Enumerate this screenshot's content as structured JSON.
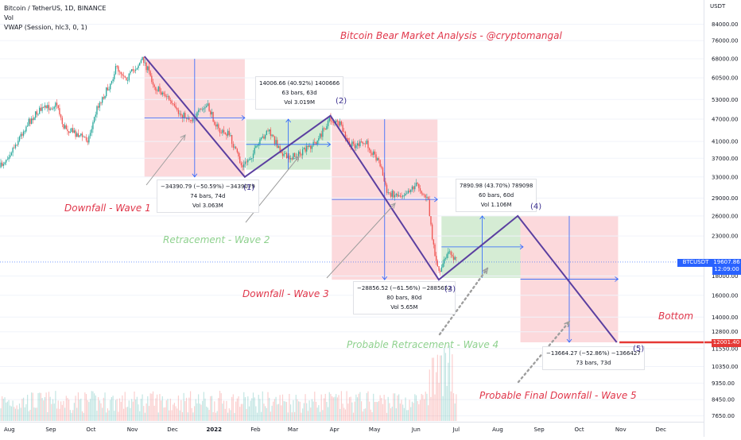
{
  "header": {
    "symbol": "Bitcoin / TetherUS, 1D, BINANCE",
    "vol": "Vol",
    "vwap": "VWAP (Session, hlc3, 0, 1)"
  },
  "title": "Bitcoin Bear Market Analysis   - @cryptomangal",
  "colors": {
    "up": "#26a69a",
    "down": "#ef5350",
    "wave_line": "#5b3fa0",
    "blue": "#2962ff",
    "red_zone": "#fcd9dc",
    "green_zone": "#d5ecd4",
    "bottom_line": "#e53935"
  },
  "chart_data": {
    "type": "candlestick",
    "price_axis": {
      "unit": "USDT",
      "scale": "log",
      "ticks": [
        84000,
        76000,
        68000,
        60500,
        53000,
        47000,
        41000,
        37000,
        33000,
        29000,
        26000,
        23000,
        18000,
        16000,
        14000,
        12800,
        11550,
        10350,
        9350,
        8450,
        7650
      ]
    },
    "time_axis": {
      "ticks": [
        "Aug",
        "Sep",
        "Oct",
        "Nov",
        "Dec",
        "2022",
        "Feb",
        "Mar",
        "Apr",
        "May",
        "Jun",
        "Jul",
        "Aug",
        "Sep",
        "Oct",
        "Nov",
        "Dec"
      ]
    },
    "close_path": [
      {
        "date": "2021-07-25",
        "price": 35000
      },
      {
        "date": "2021-08-05",
        "price": 40000
      },
      {
        "date": "2021-08-15",
        "price": 46000
      },
      {
        "date": "2021-08-23",
        "price": 49500
      },
      {
        "date": "2021-09-06",
        "price": 51500
      },
      {
        "date": "2021-09-10",
        "price": 45000
      },
      {
        "date": "2021-09-20",
        "price": 43000
      },
      {
        "date": "2021-09-29",
        "price": 41500
      },
      {
        "date": "2021-10-06",
        "price": 51000
      },
      {
        "date": "2021-10-14",
        "price": 57000
      },
      {
        "date": "2021-10-20",
        "price": 64500
      },
      {
        "date": "2021-10-28",
        "price": 60500
      },
      {
        "date": "2021-11-09",
        "price": 68000
      },
      {
        "date": "2021-11-18",
        "price": 57000
      },
      {
        "date": "2021-11-27",
        "price": 54000
      },
      {
        "date": "2021-12-04",
        "price": 49000
      },
      {
        "date": "2021-12-15",
        "price": 47000
      },
      {
        "date": "2021-12-27",
        "price": 51000
      },
      {
        "date": "2022-01-05",
        "price": 43500
      },
      {
        "date": "2022-01-12",
        "price": 43000
      },
      {
        "date": "2022-01-22",
        "price": 35000
      },
      {
        "date": "2022-01-30",
        "price": 38000
      },
      {
        "date": "2022-02-10",
        "price": 44000
      },
      {
        "date": "2022-02-24",
        "price": 37000
      },
      {
        "date": "2022-03-07",
        "price": 38000
      },
      {
        "date": "2022-03-20",
        "price": 41500
      },
      {
        "date": "2022-03-28",
        "price": 47000
      },
      {
        "date": "2022-04-05",
        "price": 45500
      },
      {
        "date": "2022-04-12",
        "price": 40000
      },
      {
        "date": "2022-04-25",
        "price": 40500
      },
      {
        "date": "2022-05-05",
        "price": 36000
      },
      {
        "date": "2022-05-10",
        "price": 30000
      },
      {
        "date": "2022-05-20",
        "price": 29500
      },
      {
        "date": "2022-06-02",
        "price": 31500
      },
      {
        "date": "2022-06-10",
        "price": 28500
      },
      {
        "date": "2022-06-13",
        "price": 22500
      },
      {
        "date": "2022-06-18",
        "price": 18500
      },
      {
        "date": "2022-06-26",
        "price": 21000
      },
      {
        "date": "2022-07-02",
        "price": 19600
      }
    ],
    "current_price": {
      "label": "BTCUSDT",
      "value": "19607.86",
      "countdown": "12:09:00"
    },
    "bottom_level": {
      "value": "12001.40"
    },
    "wave_path": [
      {
        "label": "",
        "date": "2021-11-10",
        "price": 69000
      },
      {
        "label": "(1)",
        "date": "2022-01-24",
        "price": 33000
      },
      {
        "label": "(2)",
        "date": "2022-03-29",
        "price": 48000
      },
      {
        "label": "(3)",
        "date": "2022-06-18",
        "price": 17600
      },
      {
        "label": "(4)",
        "date": "2022-08-16",
        "price": 26000
      },
      {
        "label": "(5)",
        "date": "2022-10-29",
        "price": 12000
      }
    ],
    "measurements": [
      {
        "lines": [
          "−34390.79 (−50.59%) −3439079",
          "74 bars, 74d",
          "Vol 3.063M"
        ]
      },
      {
        "lines": [
          "14006.66 (40.92%) 1400666",
          "63 bars, 63d",
          "Vol 3.019M"
        ]
      },
      {
        "lines": [
          "−28856.52 (−61.56%) −2885652",
          "80 bars, 80d",
          "Vol 5.65M"
        ]
      },
      {
        "lines": [
          "7890.98 (43.70%) 789098",
          "60 bars, 60d",
          "Vol 1.106M"
        ]
      },
      {
        "lines": [
          "−13664.27 (−52.86%) −1366427",
          "73 bars, 73d"
        ]
      }
    ],
    "annotations": [
      "Downfall - Wave 1",
      "Retracement - Wave 2",
      "Downfall - Wave 3",
      "Probable Retracement - Wave 4",
      "Probable Final Downfall - Wave 5",
      "Bottom"
    ]
  }
}
